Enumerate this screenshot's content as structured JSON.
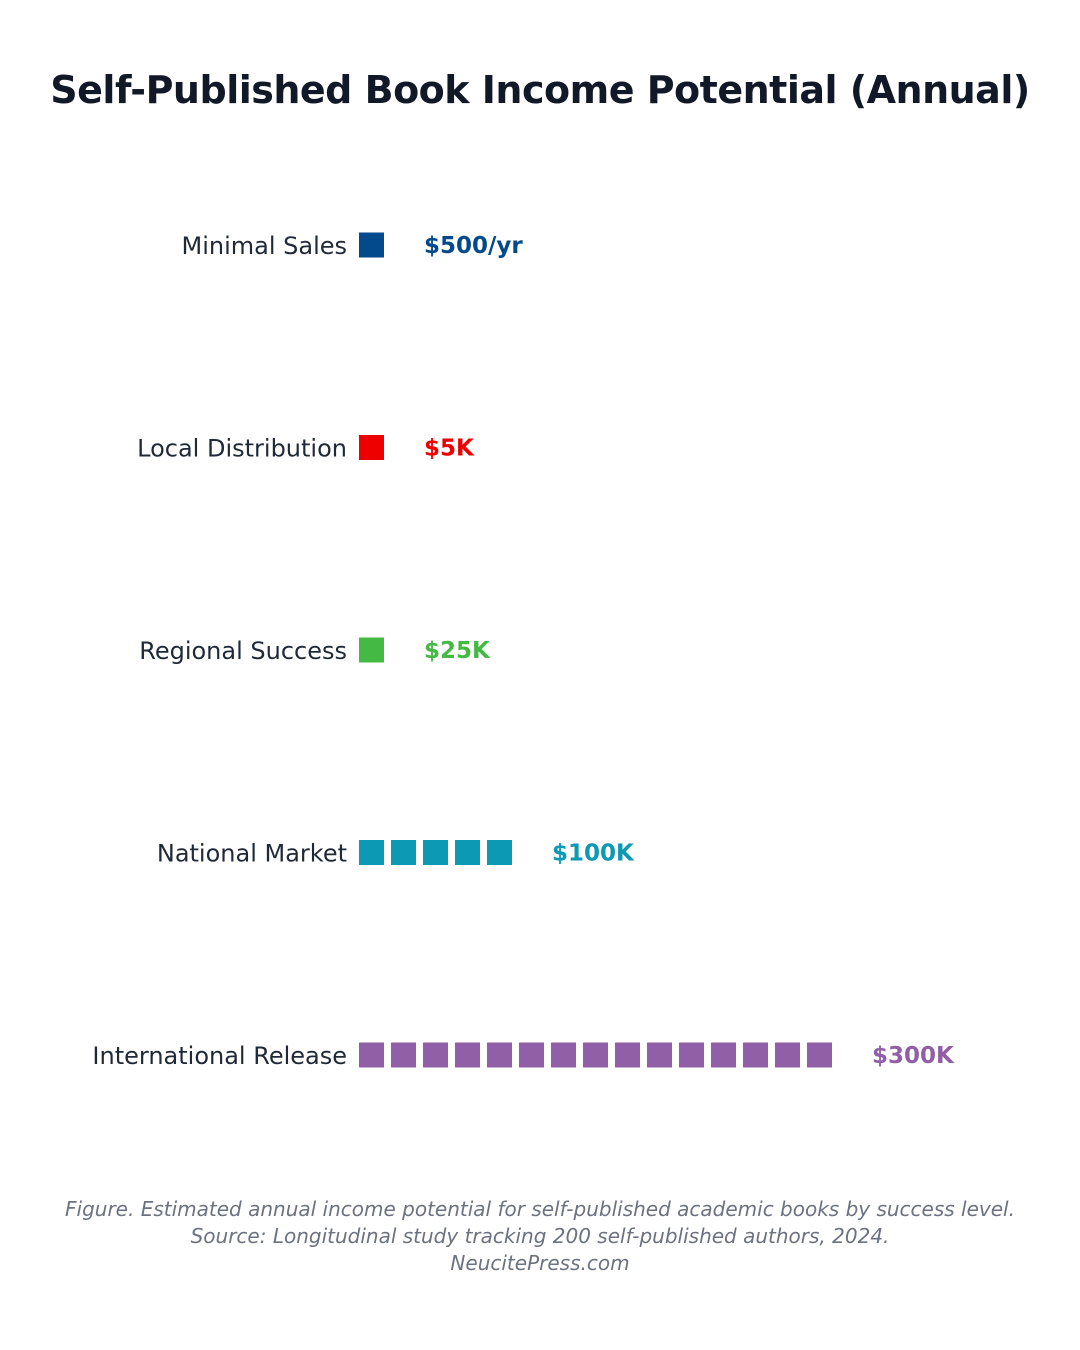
{
  "chart_data": {
    "type": "pictogram-bar",
    "title": "Self-Published Book Income Potential (Annual)",
    "unit_per_icon": 20000,
    "categories": [
      "Minimal Sales",
      "Local Distribution",
      "Regional Success",
      "National Market",
      "International Release"
    ],
    "values": [
      500,
      5000,
      25000,
      100000,
      300000
    ],
    "icon_counts": [
      1,
      1,
      1,
      5,
      15
    ],
    "value_labels": [
      "$500/yr",
      "$5K",
      "$25K",
      "$100K",
      "$300K"
    ],
    "colors": [
      "#034a8c",
      "#ee0000",
      "#44b944",
      "#0b99b4",
      "#905fa6"
    ]
  },
  "caption": {
    "line1": "Figure. Estimated annual income potential for self-published academic books by success level.",
    "line2": "Source: Longitudinal study tracking 200 self-published authors, 2024.",
    "line3": "NeucitePress.com"
  }
}
